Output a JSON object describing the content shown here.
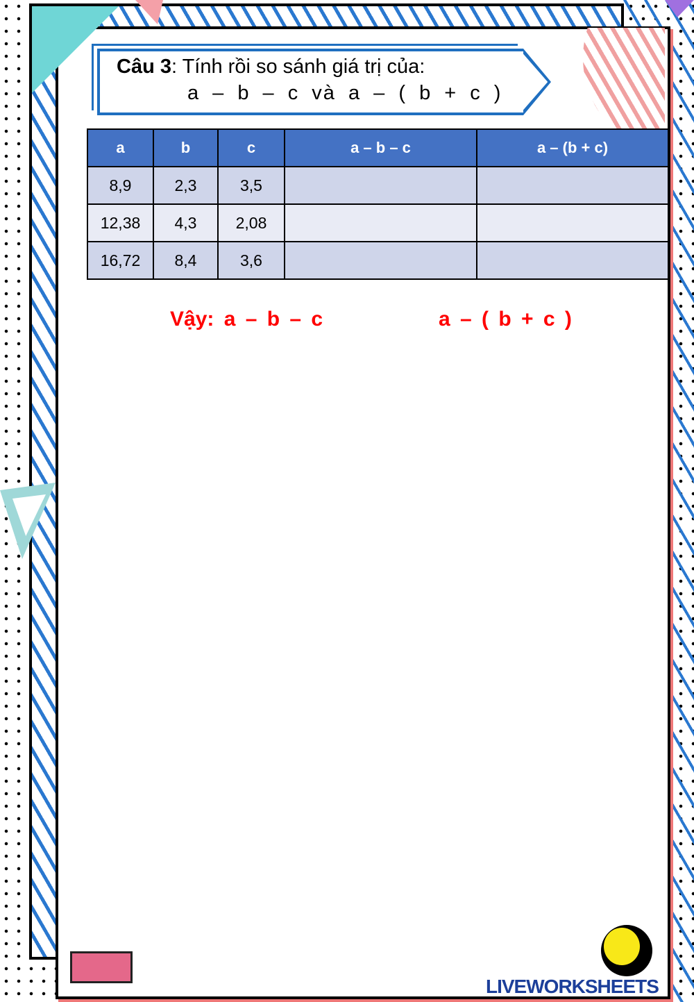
{
  "title": {
    "label": "Câu 3",
    "text": ": Tính rồi so sánh giá trị của:",
    "expr": "a – b – c   và   a – ( b + c )"
  },
  "table": {
    "headers": [
      "a",
      "b",
      "c",
      "a – b – c",
      "a – (b + c)"
    ],
    "rows": [
      [
        "8,9",
        "2,3",
        "3,5",
        "",
        ""
      ],
      [
        "12,38",
        "4,3",
        "2,08",
        "",
        ""
      ],
      [
        "16,72",
        "8,4",
        "3,6",
        "",
        ""
      ]
    ]
  },
  "conclusion": {
    "left": "Vậy: a – b – c",
    "right": "a – ( b + c )"
  },
  "watermark": "LIVEWORKSHEETS",
  "colors": {
    "header": "#4472c4",
    "accent": "#ff0000",
    "frame": "#1f6fc0"
  }
}
